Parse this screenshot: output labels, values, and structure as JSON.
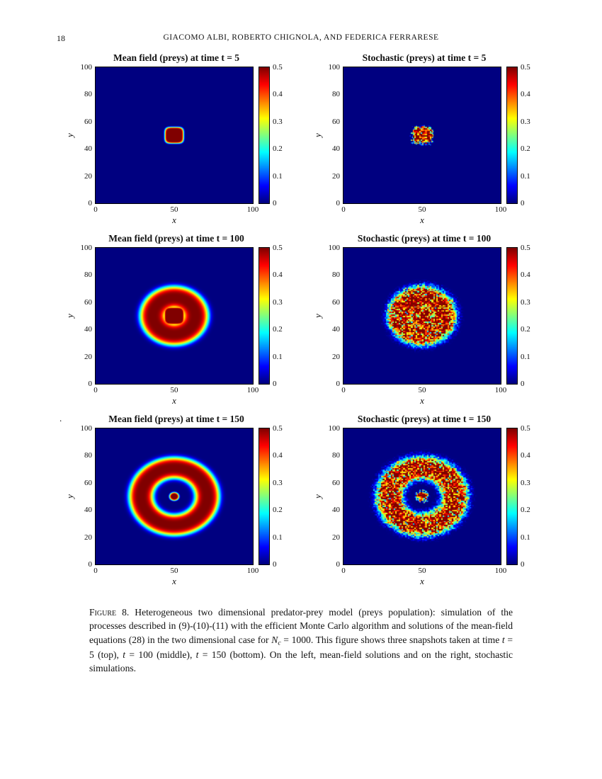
{
  "page": {
    "number": "18",
    "running_header": "GIACOMO ALBI, ROBERTO CHIGNOLA, AND FEDERICA FERRARESE",
    "stray_mark": "."
  },
  "figure": {
    "caption_segments": [
      {
        "style": "smallcaps",
        "text": "Figure 8."
      },
      {
        "style": "normal",
        "text": " Heterogeneous two dimensional predator-prey model (preys population): simulation of the processes described in (9)-(10)-(11) with the efficient Monte Carlo algorithm and solutions of the mean-field equations (28) in the two dimensional case for "
      },
      {
        "style": "math",
        "text": "N"
      },
      {
        "style": "mathsub",
        "text": "c"
      },
      {
        "style": "normal",
        "text": " = 1000. This figure shows three snapshots taken at time "
      },
      {
        "style": "math",
        "text": "t"
      },
      {
        "style": "normal",
        "text": " = 5 (top), "
      },
      {
        "style": "math",
        "text": "t"
      },
      {
        "style": "normal",
        "text": " = 100 (middle), "
      },
      {
        "style": "math",
        "text": "t"
      },
      {
        "style": "normal",
        "text": " = 150 (bottom). On the left, mean-field solutions and on the right, stochastic simulations."
      }
    ]
  },
  "chart_data": [
    {
      "type": "heatmap",
      "title": "Mean field (preys) at time t = 5",
      "xlabel": "x",
      "ylabel": "y",
      "x_range": [
        0,
        100
      ],
      "y_range": [
        0,
        100
      ],
      "x_ticks": [
        0,
        50,
        100
      ],
      "y_ticks": [
        0,
        20,
        40,
        60,
        80,
        100
      ],
      "colorbar": {
        "min": 0,
        "max": 0.5,
        "ticks": [
          0,
          0.1,
          0.2,
          0.3,
          0.4,
          0.5
        ],
        "colormap": "jet"
      },
      "field": {
        "kind": "square_blob",
        "center": [
          50,
          50
        ],
        "half_width": 5.5,
        "peak": 0.5,
        "noise": 0
      }
    },
    {
      "type": "heatmap",
      "title": "Stochastic (preys) at time t = 5",
      "xlabel": "x",
      "ylabel": "y",
      "x_range": [
        0,
        100
      ],
      "y_range": [
        0,
        100
      ],
      "x_ticks": [
        0,
        50,
        100
      ],
      "y_ticks": [
        0,
        20,
        40,
        60,
        80,
        100
      ],
      "colorbar": {
        "min": 0,
        "max": 0.5,
        "ticks": [
          0,
          0.1,
          0.2,
          0.3,
          0.4,
          0.5
        ],
        "colormap": "jet"
      },
      "field": {
        "kind": "square_blob",
        "center": [
          50,
          50
        ],
        "half_width": 5.5,
        "peak": 0.5,
        "noise": 1
      }
    },
    {
      "type": "heatmap",
      "title": "Mean field (preys) at time t = 100",
      "xlabel": "x",
      "ylabel": "y",
      "x_range": [
        0,
        100
      ],
      "y_range": [
        0,
        100
      ],
      "x_ticks": [
        0,
        50,
        100
      ],
      "y_ticks": [
        0,
        20,
        40,
        60,
        80,
        100
      ],
      "colorbar": {
        "min": 0,
        "max": 0.5,
        "ticks": [
          0,
          0.1,
          0.2,
          0.3,
          0.4,
          0.5
        ],
        "colormap": "jet"
      },
      "field": {
        "kind": "core_ring",
        "center": [
          50,
          50
        ],
        "core_half_width": 6,
        "ring_radius": 13.5,
        "ring_width": 8.5,
        "peak": 0.5,
        "noise": 0
      }
    },
    {
      "type": "heatmap",
      "title": "Stochastic (preys) at time t = 100",
      "xlabel": "x",
      "ylabel": "y",
      "x_range": [
        0,
        100
      ],
      "y_range": [
        0,
        100
      ],
      "x_ticks": [
        0,
        50,
        100
      ],
      "y_ticks": [
        0,
        20,
        40,
        60,
        80,
        100
      ],
      "colorbar": {
        "min": 0,
        "max": 0.5,
        "ticks": [
          0,
          0.1,
          0.2,
          0.3,
          0.4,
          0.5
        ],
        "colormap": "jet"
      },
      "field": {
        "kind": "core_ring",
        "center": [
          50,
          50
        ],
        "core_half_width": 6,
        "ring_radius": 13.5,
        "ring_width": 8.5,
        "peak": 0.5,
        "noise": 1
      }
    },
    {
      "type": "heatmap",
      "title": "Mean field (preys) at time t = 150",
      "xlabel": "x",
      "ylabel": "y",
      "x_range": [
        0,
        100
      ],
      "y_range": [
        0,
        100
      ],
      "x_ticks": [
        0,
        50,
        100
      ],
      "y_ticks": [
        0,
        20,
        40,
        60,
        80,
        100
      ],
      "colorbar": {
        "min": 0,
        "max": 0.5,
        "ticks": [
          0,
          0.1,
          0.2,
          0.3,
          0.4,
          0.5
        ],
        "colormap": "jet"
      },
      "field": {
        "kind": "ring_dot",
        "center": [
          50,
          50
        ],
        "dot_radius": 2.5,
        "ring_radius": 21,
        "ring_width": 8,
        "peak": 0.5,
        "noise": 0
      }
    },
    {
      "type": "heatmap",
      "title": "Stochastic (preys) at time t = 150",
      "xlabel": "x",
      "ylabel": "y",
      "x_range": [
        0,
        100
      ],
      "y_range": [
        0,
        100
      ],
      "x_ticks": [
        0,
        50,
        100
      ],
      "y_ticks": [
        0,
        20,
        40,
        60,
        80,
        100
      ],
      "colorbar": {
        "min": 0,
        "max": 0.5,
        "ticks": [
          0,
          0.1,
          0.2,
          0.3,
          0.4,
          0.5
        ],
        "colormap": "jet"
      },
      "field": {
        "kind": "ring_dot",
        "center": [
          50,
          50
        ],
        "dot_radius": 3,
        "ring_radius": 21,
        "ring_width": 8.5,
        "peak": 0.5,
        "noise": 1
      }
    }
  ]
}
